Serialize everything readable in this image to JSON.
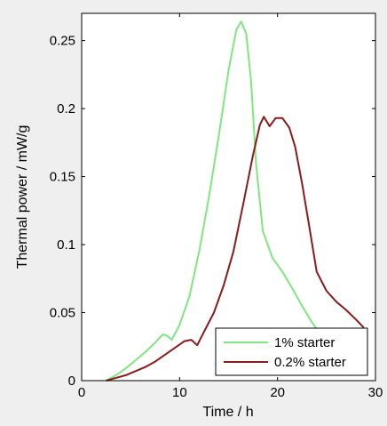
{
  "chart_data": {
    "type": "line",
    "xlabel": "Time / h",
    "ylabel": "Thermal power / mW/g",
    "xlim": [
      0,
      30
    ],
    "ylim": [
      0,
      0.27
    ],
    "x_ticks": [
      0,
      10,
      20,
      30
    ],
    "y_ticks": [
      0,
      0.05,
      0.1,
      0.15,
      0.2,
      0.25
    ],
    "x_tick_labels": [
      "0",
      "10",
      "20",
      "30"
    ],
    "y_tick_labels": [
      "0",
      "0.05",
      "0.1",
      "0.15",
      "0.2",
      "0.25"
    ],
    "grid": false,
    "legend_position": "bottom-right",
    "series": [
      {
        "name": "1% starter",
        "color": "#7ee77e",
        "x": [
          2.5,
          3.5,
          4.5,
          5.5,
          6.5,
          7.5,
          8.3,
          8.7,
          9.2,
          10,
          11,
          12,
          13,
          14,
          15,
          15.8,
          16.3,
          16.8,
          17.3,
          17.8,
          18.5,
          19.5,
          20.5,
          21.5,
          22.5,
          23.5,
          24.5,
          25.5,
          26.5
        ],
        "y": [
          0,
          0.004,
          0.009,
          0.015,
          0.021,
          0.028,
          0.034,
          0.033,
          0.03,
          0.041,
          0.062,
          0.095,
          0.135,
          0.18,
          0.228,
          0.258,
          0.264,
          0.255,
          0.22,
          0.16,
          0.11,
          0.09,
          0.08,
          0.068,
          0.055,
          0.043,
          0.033,
          0.024,
          0.016
        ]
      },
      {
        "name": "0.2% starter",
        "color": "#8b1a1a",
        "x": [
          2.5,
          3.5,
          4.5,
          5.5,
          6.5,
          7.5,
          8.5,
          9.5,
          10.5,
          11.2,
          11.8,
          12.5,
          13.5,
          14.5,
          15.5,
          16.5,
          17.5,
          18.2,
          18.6,
          19.2,
          19.8,
          20.5,
          21.2,
          21.8,
          22.5,
          23.2,
          24,
          25,
          26,
          27,
          28,
          28.8
        ],
        "y": [
          0,
          0.002,
          0.004,
          0.007,
          0.01,
          0.014,
          0.019,
          0.024,
          0.029,
          0.03,
          0.026,
          0.036,
          0.05,
          0.07,
          0.095,
          0.13,
          0.166,
          0.188,
          0.194,
          0.187,
          0.193,
          0.193,
          0.186,
          0.172,
          0.145,
          0.115,
          0.08,
          0.066,
          0.058,
          0.052,
          0.045,
          0.039
        ]
      }
    ]
  }
}
